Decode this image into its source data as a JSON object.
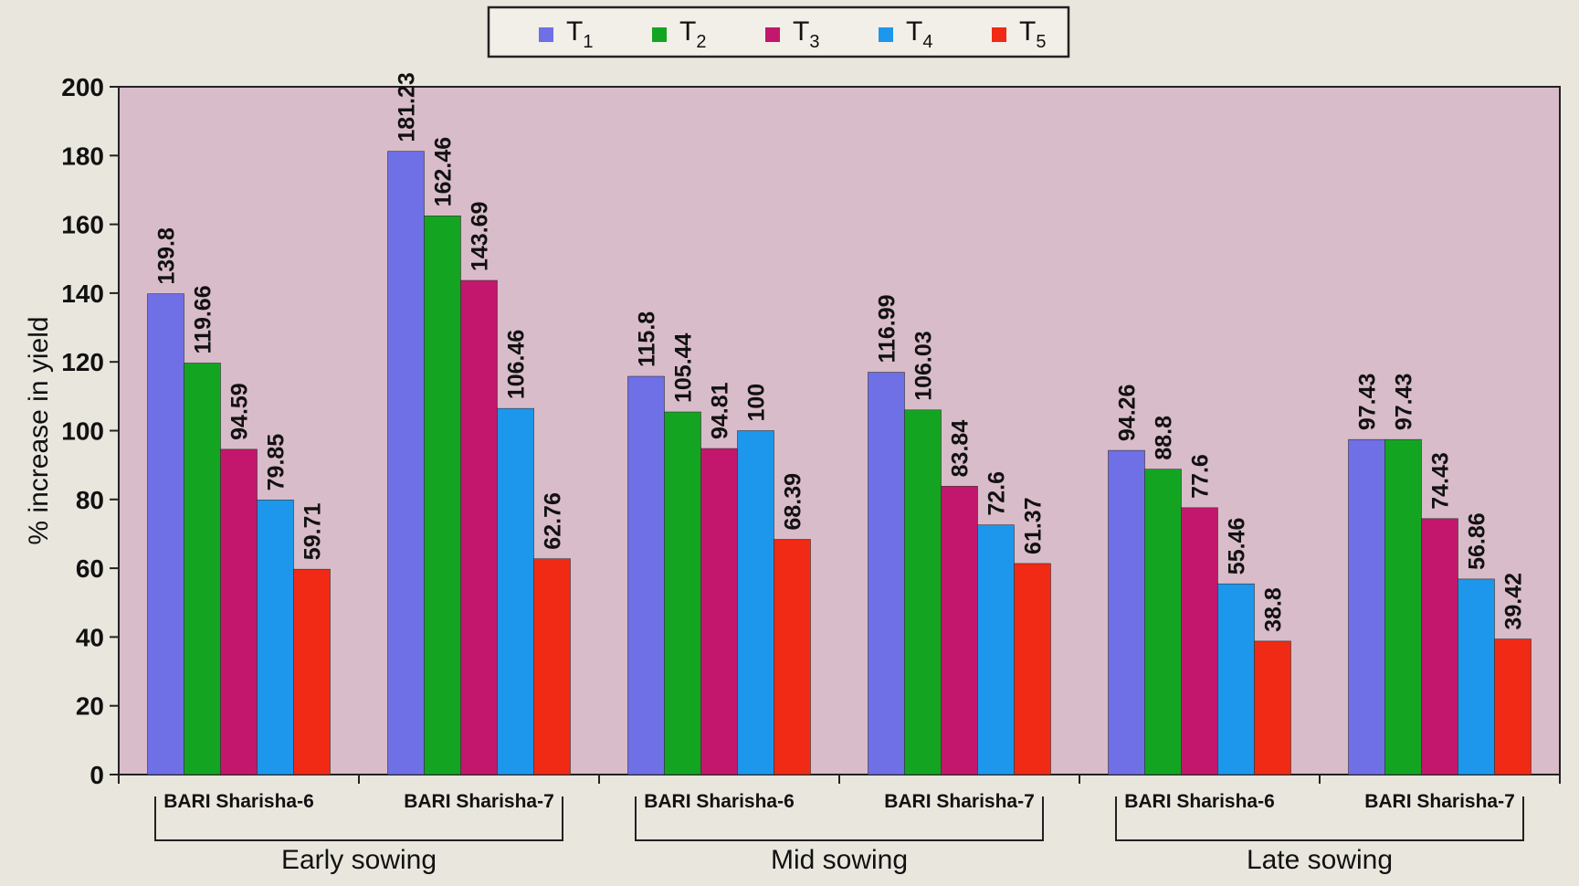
{
  "chart_data": {
    "type": "bar",
    "title": "",
    "ylabel": "% increase in yield",
    "xlabel": "",
    "ylim": [
      0,
      200
    ],
    "yticks": [
      0,
      20,
      40,
      60,
      80,
      100,
      120,
      140,
      160,
      180,
      200
    ],
    "grid": false,
    "legend_position": "top-center",
    "groups": [
      {
        "label": "Early sowing",
        "categories": [
          "BARI Sharisha-6",
          "BARI Sharisha-7"
        ]
      },
      {
        "label": "Mid sowing",
        "categories": [
          "BARI Sharisha-6",
          "BARI Sharisha-7"
        ]
      },
      {
        "label": "Late sowing",
        "categories": [
          "BARI Sharisha-6",
          "BARI Sharisha-7"
        ]
      }
    ],
    "categories": [
      "BARI Sharisha-6",
      "BARI Sharisha-7",
      "BARI Sharisha-6",
      "BARI Sharisha-7",
      "BARI Sharisha-6",
      "BARI Sharisha-7"
    ],
    "series": [
      {
        "name": "T",
        "sub": "1",
        "color": "#6f6fe6",
        "values": [
          139.8,
          181.23,
          115.8,
          116.99,
          94.26,
          97.43
        ]
      },
      {
        "name": "T",
        "sub": "2",
        "color": "#13a522",
        "values": [
          119.66,
          162.46,
          105.44,
          106.03,
          88.8,
          97.43
        ]
      },
      {
        "name": "T",
        "sub": "3",
        "color": "#c2176c",
        "values": [
          94.59,
          143.69,
          94.81,
          83.84,
          77.6,
          74.43
        ]
      },
      {
        "name": "T",
        "sub": "4",
        "color": "#1c97ec",
        "values": [
          79.85,
          106.46,
          100,
          72.6,
          55.46,
          56.86
        ]
      },
      {
        "name": "T",
        "sub": "5",
        "color": "#f02a14",
        "values": [
          59.71,
          62.76,
          68.39,
          61.37,
          38.8,
          39.42
        ]
      }
    ],
    "plot_background": "#d9bcc9"
  }
}
